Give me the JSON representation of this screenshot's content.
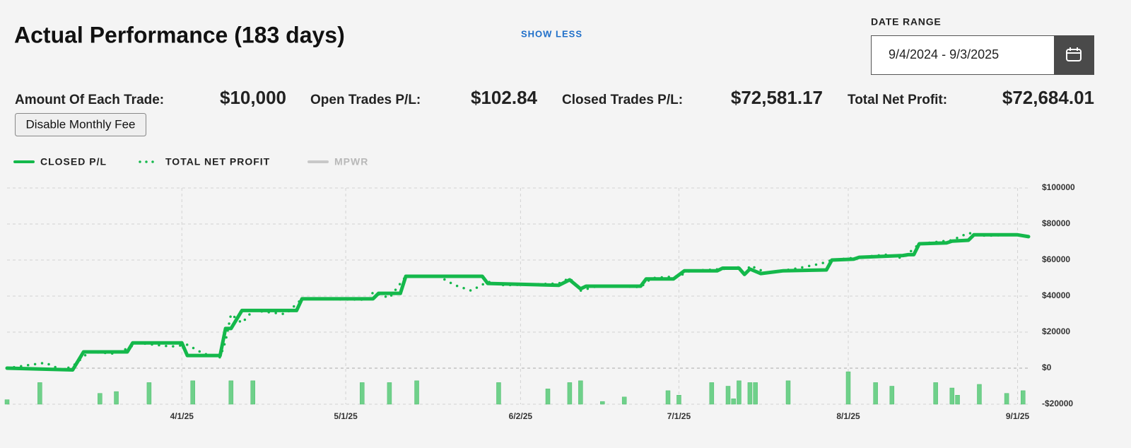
{
  "header": {
    "title": "Actual Performance (183 days)",
    "toggle": "SHOW LESS",
    "date_range_label": "DATE RANGE",
    "date_range": "9/4/2024 - 9/3/2025"
  },
  "stats": [
    {
      "label": "Amount Of Each Trade:",
      "value": "$10,000"
    },
    {
      "label": "Open Trades P/L:",
      "value": "$102.84"
    },
    {
      "label": "Closed Trades P/L:",
      "value": "$72,581.17"
    },
    {
      "label": "Total Net Profit:",
      "value": "$72,684.01"
    }
  ],
  "fee_button": "Disable Monthly Fee",
  "chart_data": {
    "type": "line",
    "xlim": [
      "2/28/25",
      "9/3/25"
    ],
    "xticks": [
      "4/1/25",
      "5/1/25",
      "6/2/25",
      "7/1/25",
      "8/1/25",
      "9/1/25"
    ],
    "ylim": [
      -20000,
      100000
    ],
    "yticks": [
      {
        "value": -20000,
        "label": "-$20000"
      },
      {
        "value": 0,
        "label": "$0"
      },
      {
        "value": 20000,
        "label": "$20000"
      },
      {
        "value": 40000,
        "label": "$40000"
      },
      {
        "value": 60000,
        "label": "$60000"
      },
      {
        "value": 80000,
        "label": "$80000"
      },
      {
        "value": 100000,
        "label": "$100000"
      }
    ],
    "grid": true,
    "series": [
      {
        "name": "CLOSED P/L",
        "color": "#14b84b",
        "style": "solid",
        "x": [
          "2/28/25",
          "3/12/25",
          "3/14/25",
          "3/22/25",
          "3/23/25",
          "4/1/25",
          "4/2/25",
          "4/8/25",
          "4/9/25",
          "4/10/25",
          "4/12/25",
          "4/22/25",
          "4/23/25",
          "5/6/25",
          "5/7/25",
          "5/11/25",
          "5/12/25",
          "5/26/25",
          "5/27/25",
          "6/9/25",
          "6/11/25",
          "6/13/25",
          "6/14/25",
          "6/24/25",
          "6/25/25",
          "6/30/25",
          "7/2/25",
          "7/8/25",
          "7/9/25",
          "7/12/25",
          "7/13/25",
          "7/14/25",
          "7/16/25",
          "7/20/25",
          "7/28/25",
          "7/29/25",
          "8/2/25",
          "8/3/25",
          "8/11/25",
          "8/12/25",
          "8/13/25",
          "8/14/25",
          "8/19/25",
          "8/20/25",
          "8/23/25",
          "8/24/25",
          "9/1/25",
          "9/3/25"
        ],
        "values": [
          0,
          -1000,
          9000,
          9000,
          14000,
          14000,
          7000,
          7000,
          22000,
          22000,
          32000,
          32000,
          38500,
          38500,
          41500,
          41500,
          51000,
          51000,
          47000,
          46000,
          49000,
          44000,
          45500,
          45500,
          49500,
          49500,
          54000,
          54000,
          55500,
          55500,
          52000,
          55000,
          52500,
          54000,
          54500,
          60000,
          60500,
          61500,
          62500,
          63000,
          63000,
          69000,
          69500,
          70500,
          71000,
          74000,
          74000,
          73000
        ]
      },
      {
        "name": "TOTAL NET PROFIT",
        "color": "#14b84b",
        "style": "dotted",
        "x": [
          "2/28/25",
          "3/7/25",
          "3/10/25",
          "3/12/25",
          "3/15/25",
          "3/20/25",
          "3/24/25",
          "3/30/25",
          "4/2/25",
          "4/5/25",
          "4/8/25",
          "4/9/25",
          "4/10/25",
          "4/12/25",
          "4/14/25",
          "4/20/25",
          "4/23/25",
          "5/5/25",
          "5/6/25",
          "5/9/25",
          "5/12/25",
          "5/18/25",
          "5/21/25",
          "5/24/25",
          "5/27/25",
          "5/30/25",
          "6/9/25",
          "6/11/25",
          "6/13/25",
          "6/16/25",
          "6/24/25",
          "6/26/25",
          "7/1/25",
          "7/3/25",
          "7/9/25",
          "7/12/25",
          "7/13/25",
          "7/14/25",
          "7/17/25",
          "7/22/25",
          "7/27/25",
          "7/29/25",
          "8/3/25",
          "8/8/25",
          "8/11/25",
          "8/14/25",
          "8/20/25",
          "8/23/25",
          "8/26/25",
          "9/1/25",
          "9/3/25"
        ],
        "values": [
          0,
          3000,
          -1000,
          1000,
          9000,
          8000,
          14000,
          12000,
          13000,
          8000,
          6000,
          15000,
          30000,
          25000,
          32000,
          30000,
          38500,
          38000,
          42000,
          39000,
          51000,
          51000,
          46000,
          43000,
          48000,
          46000,
          47000,
          50000,
          43000,
          45500,
          45000,
          50000,
          51000,
          54000,
          55000,
          56000,
          51000,
          57000,
          53000,
          55000,
          58000,
          60000,
          61500,
          63000,
          61000,
          69000,
          71000,
          75000,
          73500,
          74000,
          73000
        ]
      },
      {
        "name": "MPWR",
        "color": "#c4c4c4",
        "style": "solid",
        "hidden": true,
        "x": [],
        "values": []
      }
    ],
    "bars": {
      "color": "#6fd08a",
      "x": [
        "2/28/25",
        "3/6/25",
        "3/17/25",
        "3/20/25",
        "3/26/25",
        "4/3/25",
        "4/10/25",
        "4/14/25",
        "5/4/25",
        "5/9/25",
        "5/14/25",
        "5/29/25",
        "6/7/25",
        "6/11/25",
        "6/13/25",
        "6/17/25",
        "6/21/25",
        "6/29/25",
        "7/1/25",
        "7/7/25",
        "7/10/25",
        "7/11/25",
        "7/12/25",
        "7/14/25",
        "7/15/25",
        "7/21/25",
        "8/1/25",
        "8/6/25",
        "8/9/25",
        "8/17/25",
        "8/20/25",
        "8/21/25",
        "8/25/25",
        "8/30/25",
        "9/2/25"
      ],
      "values": [
        -17500,
        -8000,
        -14000,
        -13000,
        -8000,
        -7000,
        -7000,
        -7000,
        -8000,
        -8000,
        -7000,
        -8000,
        -11500,
        -8000,
        -7000,
        -18500,
        -16000,
        -12500,
        -15000,
        -8000,
        -10000,
        -17000,
        -7000,
        -8000,
        -8000,
        -7000,
        -2000,
        -8000,
        -10000,
        -8000,
        -11000,
        -15000,
        -9000,
        -14000,
        -12500
      ]
    }
  }
}
